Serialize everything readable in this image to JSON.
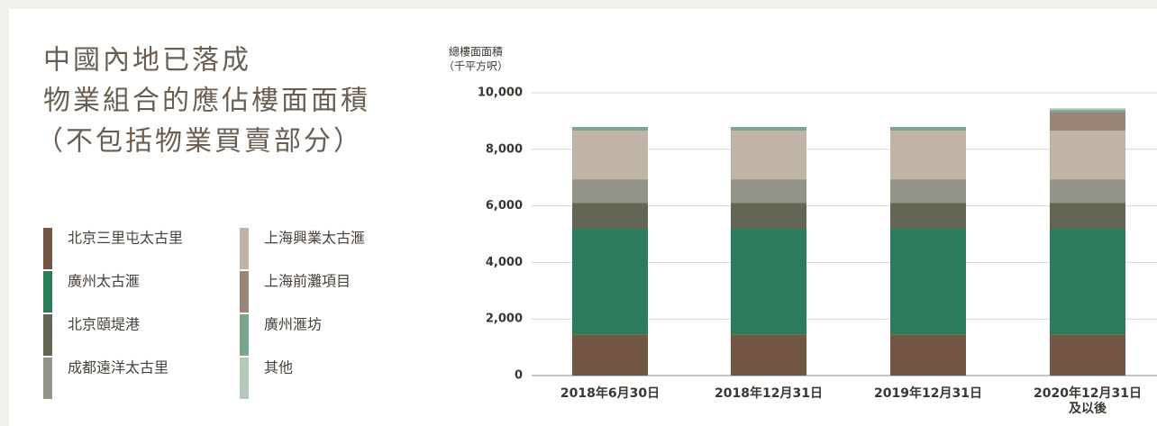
{
  "chart_data": {
    "type": "stacked_bar",
    "title": [
      "中國內地已落成",
      "物業組合的應佔樓面面積",
      "（不包括物業買賣部分）"
    ],
    "y_label": [
      "總樓面面積",
      "（千平方呎）"
    ],
    "categories": [
      "2018年6月30日",
      "2018年12月31日",
      "2019年12月31日",
      "2020年12月31日\n及以後"
    ],
    "series": [
      {
        "name": "北京三里屯太古里",
        "color": "#735744",
        "values": [
          1460,
          1460,
          1460,
          1460
        ]
      },
      {
        "name": "廣州太古滙",
        "color": "#2a7d5b",
        "values": [
          3730,
          3730,
          3730,
          3730
        ]
      },
      {
        "name": "北京頤堤港",
        "color": "#626652",
        "values": [
          920,
          920,
          920,
          920
        ]
      },
      {
        "name": "成都遠洋太古里",
        "color": "#93958a",
        "values": [
          830,
          830,
          830,
          830
        ]
      },
      {
        "name": "上海興業太古滙",
        "color": "#c1b3a6",
        "values": [
          1720,
          1720,
          1720,
          1720
        ]
      },
      {
        "name": "上海前灘項目",
        "color": "#9a8676",
        "values": [
          0,
          0,
          0,
          640
        ]
      },
      {
        "name": "廣州滙坊",
        "color": "#7aa690",
        "values": [
          130,
          130,
          130,
          90
        ]
      },
      {
        "name": "其他",
        "color": "#b3c8b8",
        "values": [
          0,
          0,
          0,
          60
        ]
      }
    ],
    "ylim": [
      0,
      10000
    ],
    "yticks": [
      0,
      {
        "value": 2000,
        "label": "2,000"
      },
      {
        "value": 4000,
        "label": "4,000"
      },
      {
        "value": 6000,
        "label": "6,000"
      },
      {
        "value": 8000,
        "label": "8,000"
      },
      {
        "value": 10000,
        "label": "10,000"
      }
    ],
    "grid": true
  }
}
